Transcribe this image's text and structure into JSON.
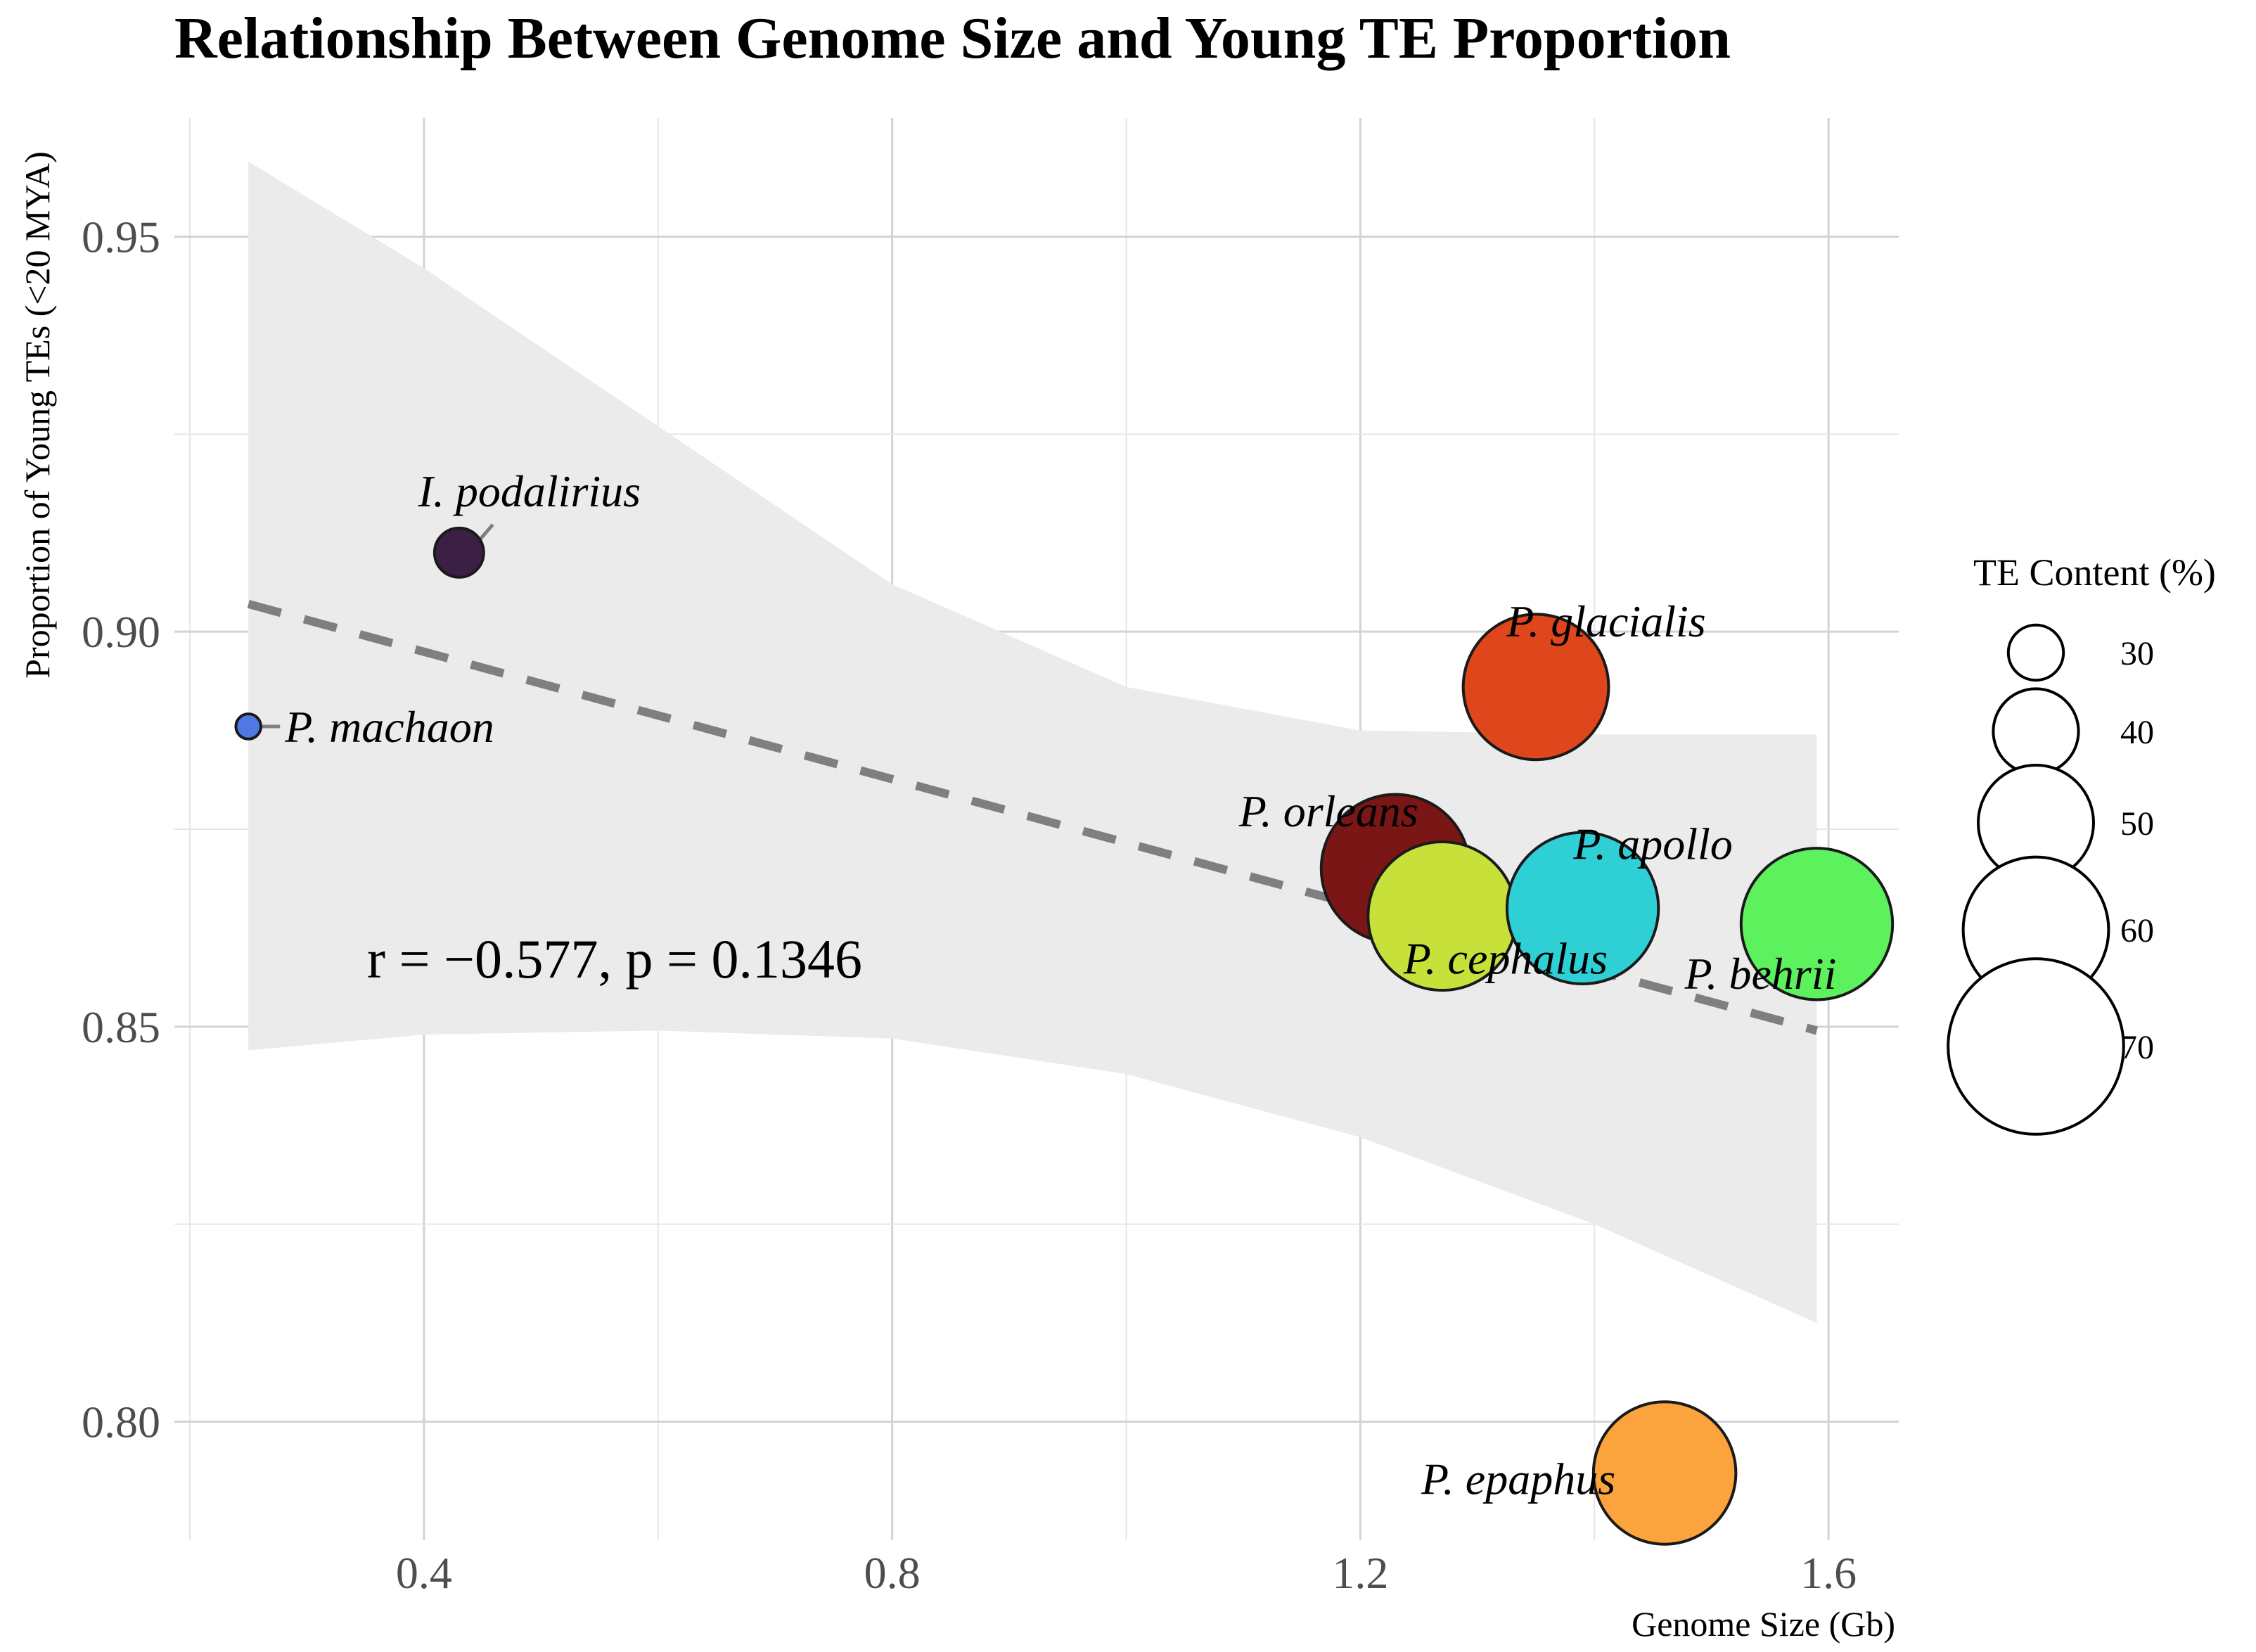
{
  "chart_data": {
    "type": "scatter",
    "title": "Relationship Between Genome Size and Young TE Proportion",
    "xlabel": "Genome Size (Gb)",
    "ylabel": "Proportion of Young TEs (<20 MYA)",
    "xlim": [
      0.2,
      1.66
    ],
    "ylim": [
      0.785,
      0.965
    ],
    "xticks": [
      0.4,
      0.8,
      1.2,
      1.6
    ],
    "xtick_labels": [
      "0.4",
      "0.8",
      "1.2",
      "1.6"
    ],
    "xminor": [
      0.2,
      0.6,
      1.0,
      1.4
    ],
    "yticks": [
      0.8,
      0.85,
      0.9,
      0.95
    ],
    "ytick_labels": [
      "0.80",
      "0.85",
      "0.90",
      "0.95"
    ],
    "yminor": [
      0.825,
      0.875,
      0.925
    ],
    "grid": true,
    "points": [
      {
        "species": "P. machaon",
        "x": 0.25,
        "y": 0.888,
        "te_content": 20,
        "color": "#4f77e6"
      },
      {
        "species": "I. podalirius",
        "x": 0.43,
        "y": 0.91,
        "te_content": 28,
        "color": "#3b1f45"
      },
      {
        "species": "P. glacialis",
        "x": 1.35,
        "y": 0.893,
        "te_content": 60,
        "color": "#e0461c"
      },
      {
        "species": "P. orleans",
        "x": 1.23,
        "y": 0.87,
        "te_content": 61,
        "color": "#7b1616"
      },
      {
        "species": "P. cephalus",
        "x": 1.27,
        "y": 0.864,
        "te_content": 61,
        "color": "#c8e03a"
      },
      {
        "species": "P. apollo",
        "x": 1.39,
        "y": 0.865,
        "te_content": 62,
        "color": "#2fcfd6"
      },
      {
        "species": "P. behrii",
        "x": 1.59,
        "y": 0.863,
        "te_content": 62,
        "color": "#5df25d"
      },
      {
        "species": "P. epaphus",
        "x": 1.46,
        "y": 0.7935,
        "te_content": 59,
        "color": "#fba33d"
      }
    ],
    "regression": {
      "x": [
        0.25,
        1.59
      ],
      "y": [
        0.9035,
        0.8495
      ],
      "style": "dashed",
      "color": "#7f7f7f"
    },
    "confidence_band": {
      "x": [
        0.25,
        0.4,
        0.6,
        0.8,
        1.0,
        1.2,
        1.4,
        1.59
      ],
      "upper": [
        0.9595,
        0.946,
        0.926,
        0.906,
        0.893,
        0.8875,
        0.887,
        0.887
      ],
      "lower": [
        0.847,
        0.849,
        0.8495,
        0.8485,
        0.844,
        0.836,
        0.825,
        0.8125
      ],
      "color": "#ebebeb"
    },
    "annotation": "r = −0.577, p = 0.1346",
    "legend": {
      "title": "TE Content (%)",
      "position": "right",
      "entries": [
        {
          "label": "30",
          "value": 30
        },
        {
          "label": "40",
          "value": 40
        },
        {
          "label": "50",
          "value": 50
        },
        {
          "label": "60",
          "value": 60
        },
        {
          "label": "70",
          "value": 70
        }
      ]
    }
  }
}
